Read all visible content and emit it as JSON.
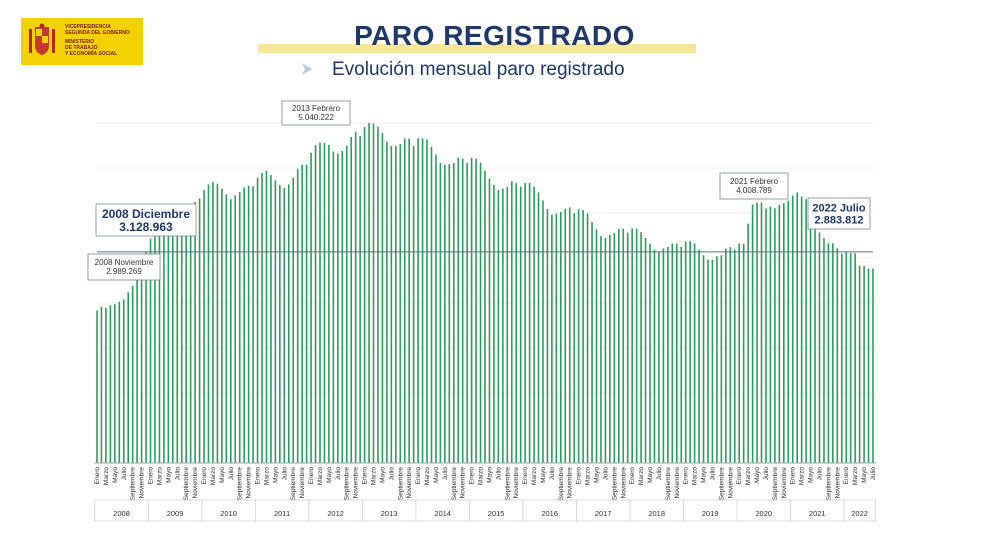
{
  "header": {
    "logo": {
      "lines": [
        "VICEPRESIDENCIA",
        "SEGUNDA DEL GOBIERNO",
        "MINISTERIO",
        "DE TRABAJO",
        "Y ECONOMÍA SOCIAL"
      ],
      "color": "#f4d100"
    },
    "title": "PARO REGISTRADO",
    "subtitle": "Evolución mensual paro registrado"
  },
  "chart_data": {
    "type": "bar",
    "title": "PARO REGISTRADO",
    "subtitle": "Evolución mensual paro registrado",
    "bar_color": "#2e9a5f",
    "reference_line_value": 3128963,
    "years": [
      "2008",
      "2009",
      "2010",
      "2011",
      "2012",
      "2013",
      "2014",
      "2015",
      "2016",
      "2017",
      "2018",
      "2019",
      "2020",
      "2021",
      "2022"
    ],
    "tick_labels": [
      "Enero",
      "Marzo",
      "Mayo",
      "Julio",
      "Septiembre",
      "Noviembre"
    ],
    "tick_labels_2022": [
      "Enero",
      "Marzo",
      "Mayo",
      "Julio"
    ],
    "values": [
      2261000,
      2315000,
      2301000,
      2338000,
      2353000,
      2391000,
      2426000,
      2531000,
      2625000,
      2818000,
      2989269,
      3128963,
      3327801,
      3481859,
      3605402,
      3644041,
      3620139,
      3564889,
      3544105,
      3629080,
      3709447,
      3808353,
      3868946,
      3923603,
      4048493,
      4130625,
      4166613,
      4142425,
      4066202,
      3982368,
      3908371,
      3969661,
      4017763,
      4085976,
      4110294,
      4100073,
      4231003,
      4299263,
      4333669,
      4269360,
      4189659,
      4121801,
      4079742,
      4130927,
      4226744,
      4360926,
      4420462,
      4422359,
      4599829,
      4712098,
      4750867,
      4744235,
      4714122,
      4615269,
      4587455,
      4625634,
      4705279,
      4833521,
      4907817,
      4848723,
      4980778,
      5040222,
      5035243,
      4989193,
      4890928,
      4763680,
      4698814,
      4698783,
      4724355,
      4811383,
      4808908,
      4701338,
      4814435,
      4812486,
      4795866,
      4684301,
      4572385,
      4449701,
      4419860,
      4427930,
      4447650,
      4526804,
      4512153,
      4447711,
      4525691,
      4512116,
      4451939,
      4333016,
      4215031,
      4120304,
      4046276,
      4067955,
      4094042,
      4176369,
      4149298,
      4093508,
      4150710,
      4152986,
      4094770,
      4011171,
      3891403,
      3767054,
      3683061,
      3697496,
      3720297,
      3764982,
      3789823,
      3702974,
      3760321,
      3750876,
      3702317,
      3573036,
      3461128,
      3362811,
      3335924,
      3382324,
      3410182,
      3467026,
      3474281,
      3412781,
      3476528,
      3476528,
      3422551,
      3335868,
      3252130,
      3162162,
      3135021,
      3182068,
      3202509,
      3254703,
      3252867,
      3202297,
      3285761,
      3289040,
      3255084,
      3163566,
      3079491,
      3015686,
      3011433,
      3065804,
      3079711,
      3177659,
      3198184,
      3163605,
      3253853,
      3246047,
      3548312,
      3831203,
      3857776,
      3862883,
      3773034,
      3802814,
      3776485,
      3826043,
      3851312,
      3888137,
      3964353,
      4008789,
      3949640,
      3910628,
      3781250,
      3614339,
      3416498,
      3333915,
      3257802,
      3257068,
      3182687,
      3105905,
      3123078,
      3111684,
      3108763,
      2922991,
      2922911,
      2880582,
      2883812
    ],
    "annotations": [
      {
        "label": "2008 Noviembre",
        "value_text": "2.989.269"
      },
      {
        "label": "2008 Diciembre",
        "value_text": "3.128.963"
      },
      {
        "label": "2013 Febrero",
        "value_text": "5.040.222"
      },
      {
        "label": "2021 Febrero",
        "value_text": "4.008.789"
      },
      {
        "label": "2022 Julio",
        "value_text": "2.883.812"
      }
    ]
  }
}
